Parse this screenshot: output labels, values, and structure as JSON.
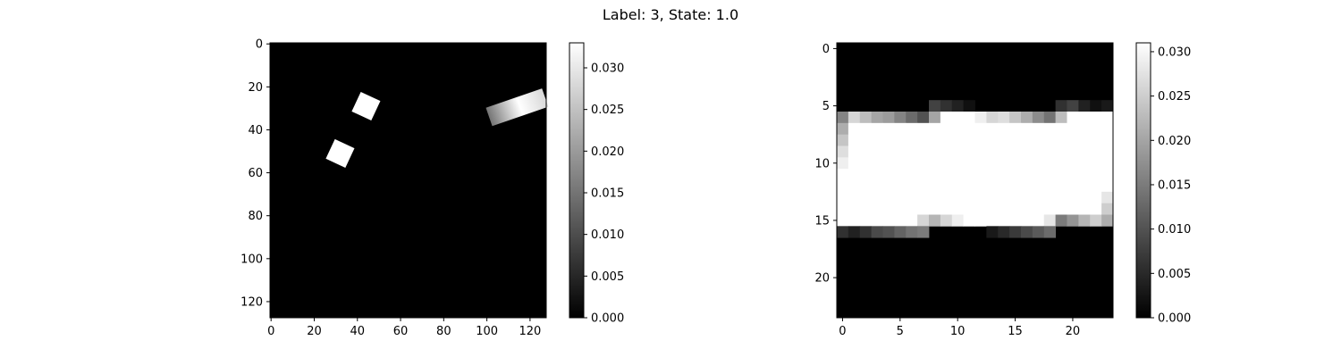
{
  "suptitle": "Label: 3, State: 1.0",
  "colors": {
    "cmap_low": "#000000",
    "cmap_high": "#ffffff",
    "axis": "#000000"
  },
  "chart_data": [
    {
      "type": "heatmap",
      "panel": "left",
      "title": "",
      "xlabel": "",
      "ylabel": "",
      "grid": false,
      "image_size": [
        128,
        128
      ],
      "x_ticks": [
        0,
        20,
        40,
        60,
        80,
        100,
        120
      ],
      "y_ticks": [
        0,
        20,
        40,
        60,
        80,
        100,
        120
      ],
      "xlim": [
        -0.5,
        127.5
      ],
      "ylim": [
        127.5,
        -0.5
      ],
      "vmin": 0.0,
      "vmax": 0.033,
      "colorbar_ticks": [
        "0.000",
        "0.005",
        "0.010",
        "0.015",
        "0.020",
        "0.025",
        "0.030"
      ],
      "colorbar_values": [
        0.0,
        0.005,
        0.01,
        0.015,
        0.02,
        0.025,
        0.03
      ],
      "background_value": 0.0,
      "objects": [
        {
          "shape": "rotated-square",
          "center": [
            44,
            29
          ],
          "size": 10,
          "rotation_deg": 25,
          "value": 0.033
        },
        {
          "shape": "rotated-square",
          "center": [
            32,
            51
          ],
          "size": 10,
          "rotation_deg": 25,
          "value": 0.033
        },
        {
          "shape": "gradient-bar",
          "from": [
            101,
            34
          ],
          "to": [
            127,
            25
          ],
          "thickness": 9,
          "value_start": 0.015,
          "value_mid": 0.033,
          "value_end": 0.028
        }
      ]
    },
    {
      "type": "heatmap",
      "panel": "right",
      "title": "",
      "xlabel": "",
      "ylabel": "",
      "grid": false,
      "image_size": [
        24,
        24
      ],
      "x_ticks": [
        0,
        5,
        10,
        15,
        20
      ],
      "y_ticks": [
        0,
        5,
        10,
        15,
        20
      ],
      "xlim": [
        -0.5,
        23.5
      ],
      "ylim": [
        23.5,
        -0.5
      ],
      "vmin": 0.0,
      "vmax": 0.031,
      "colorbar_ticks": [
        "0.000",
        "0.005",
        "0.010",
        "0.015",
        "0.020",
        "0.025",
        "0.030"
      ],
      "colorbar_values": [
        0.0,
        0.005,
        0.01,
        0.015,
        0.02,
        0.025,
        0.03
      ],
      "rows": [
        [
          0,
          0,
          0,
          0,
          0,
          0,
          0,
          0,
          0,
          0,
          0,
          0,
          0,
          0,
          0,
          0,
          0,
          0,
          0,
          0,
          0,
          0,
          0,
          0
        ],
        [
          0,
          0,
          0,
          0,
          0,
          0,
          0,
          0,
          0,
          0,
          0,
          0,
          0,
          0,
          0,
          0,
          0,
          0,
          0,
          0,
          0,
          0,
          0,
          0
        ],
        [
          0,
          0,
          0,
          0,
          0,
          0,
          0,
          0,
          0,
          0,
          0,
          0,
          0,
          0,
          0,
          0,
          0,
          0,
          0,
          0,
          0,
          0,
          0,
          0
        ],
        [
          0,
          0,
          0,
          0,
          0,
          0,
          0,
          0,
          0,
          0,
          0,
          0,
          0,
          0,
          0,
          0,
          0,
          0,
          0,
          0,
          0,
          0,
          0,
          0
        ],
        [
          0,
          0,
          0,
          0,
          0,
          0,
          0,
          0,
          0,
          0,
          0,
          0,
          0,
          0,
          0,
          0,
          0,
          0,
          0,
          0,
          0,
          0,
          0,
          0
        ],
        [
          0,
          0,
          0,
          0,
          0,
          0,
          0,
          0,
          0.008,
          0.006,
          0.004,
          0.002,
          0,
          0,
          0,
          0,
          0,
          0,
          0,
          0.006,
          0.008,
          0.004,
          0.002,
          0.003
        ],
        [
          0.016,
          0.026,
          0.023,
          0.02,
          0.019,
          0.016,
          0.013,
          0.01,
          0.02,
          0.031,
          0.031,
          0.031,
          0.029,
          0.026,
          0.027,
          0.024,
          0.021,
          0.017,
          0.014,
          0.023,
          0.031,
          0.031,
          0.031,
          0.031
        ],
        [
          0.021,
          0.031,
          0.031,
          0.031,
          0.031,
          0.031,
          0.031,
          0.031,
          0.031,
          0.031,
          0.031,
          0.031,
          0.031,
          0.031,
          0.031,
          0.031,
          0.031,
          0.031,
          0.031,
          0.031,
          0.031,
          0.031,
          0.031,
          0.031
        ],
        [
          0.024,
          0.031,
          0.031,
          0.031,
          0.031,
          0.031,
          0.031,
          0.031,
          0.031,
          0.031,
          0.031,
          0.031,
          0.031,
          0.031,
          0.031,
          0.031,
          0.031,
          0.031,
          0.031,
          0.031,
          0.031,
          0.031,
          0.031,
          0.031
        ],
        [
          0.027,
          0.031,
          0.031,
          0.031,
          0.031,
          0.031,
          0.031,
          0.031,
          0.031,
          0.031,
          0.031,
          0.031,
          0.031,
          0.031,
          0.031,
          0.031,
          0.031,
          0.031,
          0.031,
          0.031,
          0.031,
          0.031,
          0.031,
          0.031
        ],
        [
          0.029,
          0.031,
          0.031,
          0.031,
          0.031,
          0.031,
          0.031,
          0.031,
          0.031,
          0.031,
          0.031,
          0.031,
          0.031,
          0.031,
          0.031,
          0.031,
          0.031,
          0.031,
          0.031,
          0.031,
          0.031,
          0.031,
          0.031,
          0.031
        ],
        [
          0.031,
          0.031,
          0.031,
          0.031,
          0.031,
          0.031,
          0.031,
          0.031,
          0.031,
          0.031,
          0.031,
          0.031,
          0.031,
          0.031,
          0.031,
          0.031,
          0.031,
          0.031,
          0.031,
          0.031,
          0.031,
          0.031,
          0.031,
          0.031
        ],
        [
          0.031,
          0.031,
          0.031,
          0.031,
          0.031,
          0.031,
          0.031,
          0.031,
          0.031,
          0.031,
          0.031,
          0.031,
          0.031,
          0.031,
          0.031,
          0.031,
          0.031,
          0.031,
          0.031,
          0.031,
          0.031,
          0.031,
          0.031,
          0.031
        ],
        [
          0.031,
          0.031,
          0.031,
          0.031,
          0.031,
          0.031,
          0.031,
          0.031,
          0.031,
          0.031,
          0.031,
          0.031,
          0.031,
          0.031,
          0.031,
          0.031,
          0.031,
          0.031,
          0.031,
          0.031,
          0.031,
          0.031,
          0.031,
          0.028
        ],
        [
          0.031,
          0.031,
          0.031,
          0.031,
          0.031,
          0.031,
          0.031,
          0.031,
          0.031,
          0.031,
          0.031,
          0.031,
          0.031,
          0.031,
          0.031,
          0.031,
          0.031,
          0.031,
          0.031,
          0.031,
          0.031,
          0.031,
          0.031,
          0.025
        ],
        [
          0.031,
          0.031,
          0.031,
          0.031,
          0.031,
          0.031,
          0.031,
          0.026,
          0.022,
          0.026,
          0.029,
          0.031,
          0.031,
          0.031,
          0.031,
          0.031,
          0.031,
          0.031,
          0.028,
          0.015,
          0.018,
          0.022,
          0.025,
          0.021
        ],
        [
          0.006,
          0.004,
          0.006,
          0.009,
          0.01,
          0.012,
          0.014,
          0.015,
          0,
          0,
          0,
          0,
          0,
          0.003,
          0.005,
          0.007,
          0.009,
          0.011,
          0.013,
          0,
          0,
          0,
          0,
          0
        ],
        [
          0,
          0,
          0,
          0,
          0,
          0,
          0,
          0,
          0,
          0,
          0,
          0,
          0,
          0,
          0,
          0,
          0,
          0,
          0,
          0,
          0,
          0,
          0,
          0
        ],
        [
          0,
          0,
          0,
          0,
          0,
          0,
          0,
          0,
          0,
          0,
          0,
          0,
          0,
          0,
          0,
          0,
          0,
          0,
          0,
          0,
          0,
          0,
          0,
          0
        ],
        [
          0,
          0,
          0,
          0,
          0,
          0,
          0,
          0,
          0,
          0,
          0,
          0,
          0,
          0,
          0,
          0,
          0,
          0,
          0,
          0,
          0,
          0,
          0,
          0
        ],
        [
          0,
          0,
          0,
          0,
          0,
          0,
          0,
          0,
          0,
          0,
          0,
          0,
          0,
          0,
          0,
          0,
          0,
          0,
          0,
          0,
          0,
          0,
          0,
          0
        ],
        [
          0,
          0,
          0,
          0,
          0,
          0,
          0,
          0,
          0,
          0,
          0,
          0,
          0,
          0,
          0,
          0,
          0,
          0,
          0,
          0,
          0,
          0,
          0,
          0
        ],
        [
          0,
          0,
          0,
          0,
          0,
          0,
          0,
          0,
          0,
          0,
          0,
          0,
          0,
          0,
          0,
          0,
          0,
          0,
          0,
          0,
          0,
          0,
          0,
          0
        ],
        [
          0,
          0,
          0,
          0,
          0,
          0,
          0,
          0,
          0,
          0,
          0,
          0,
          0,
          0,
          0,
          0,
          0,
          0,
          0,
          0,
          0,
          0,
          0,
          0
        ]
      ]
    }
  ]
}
